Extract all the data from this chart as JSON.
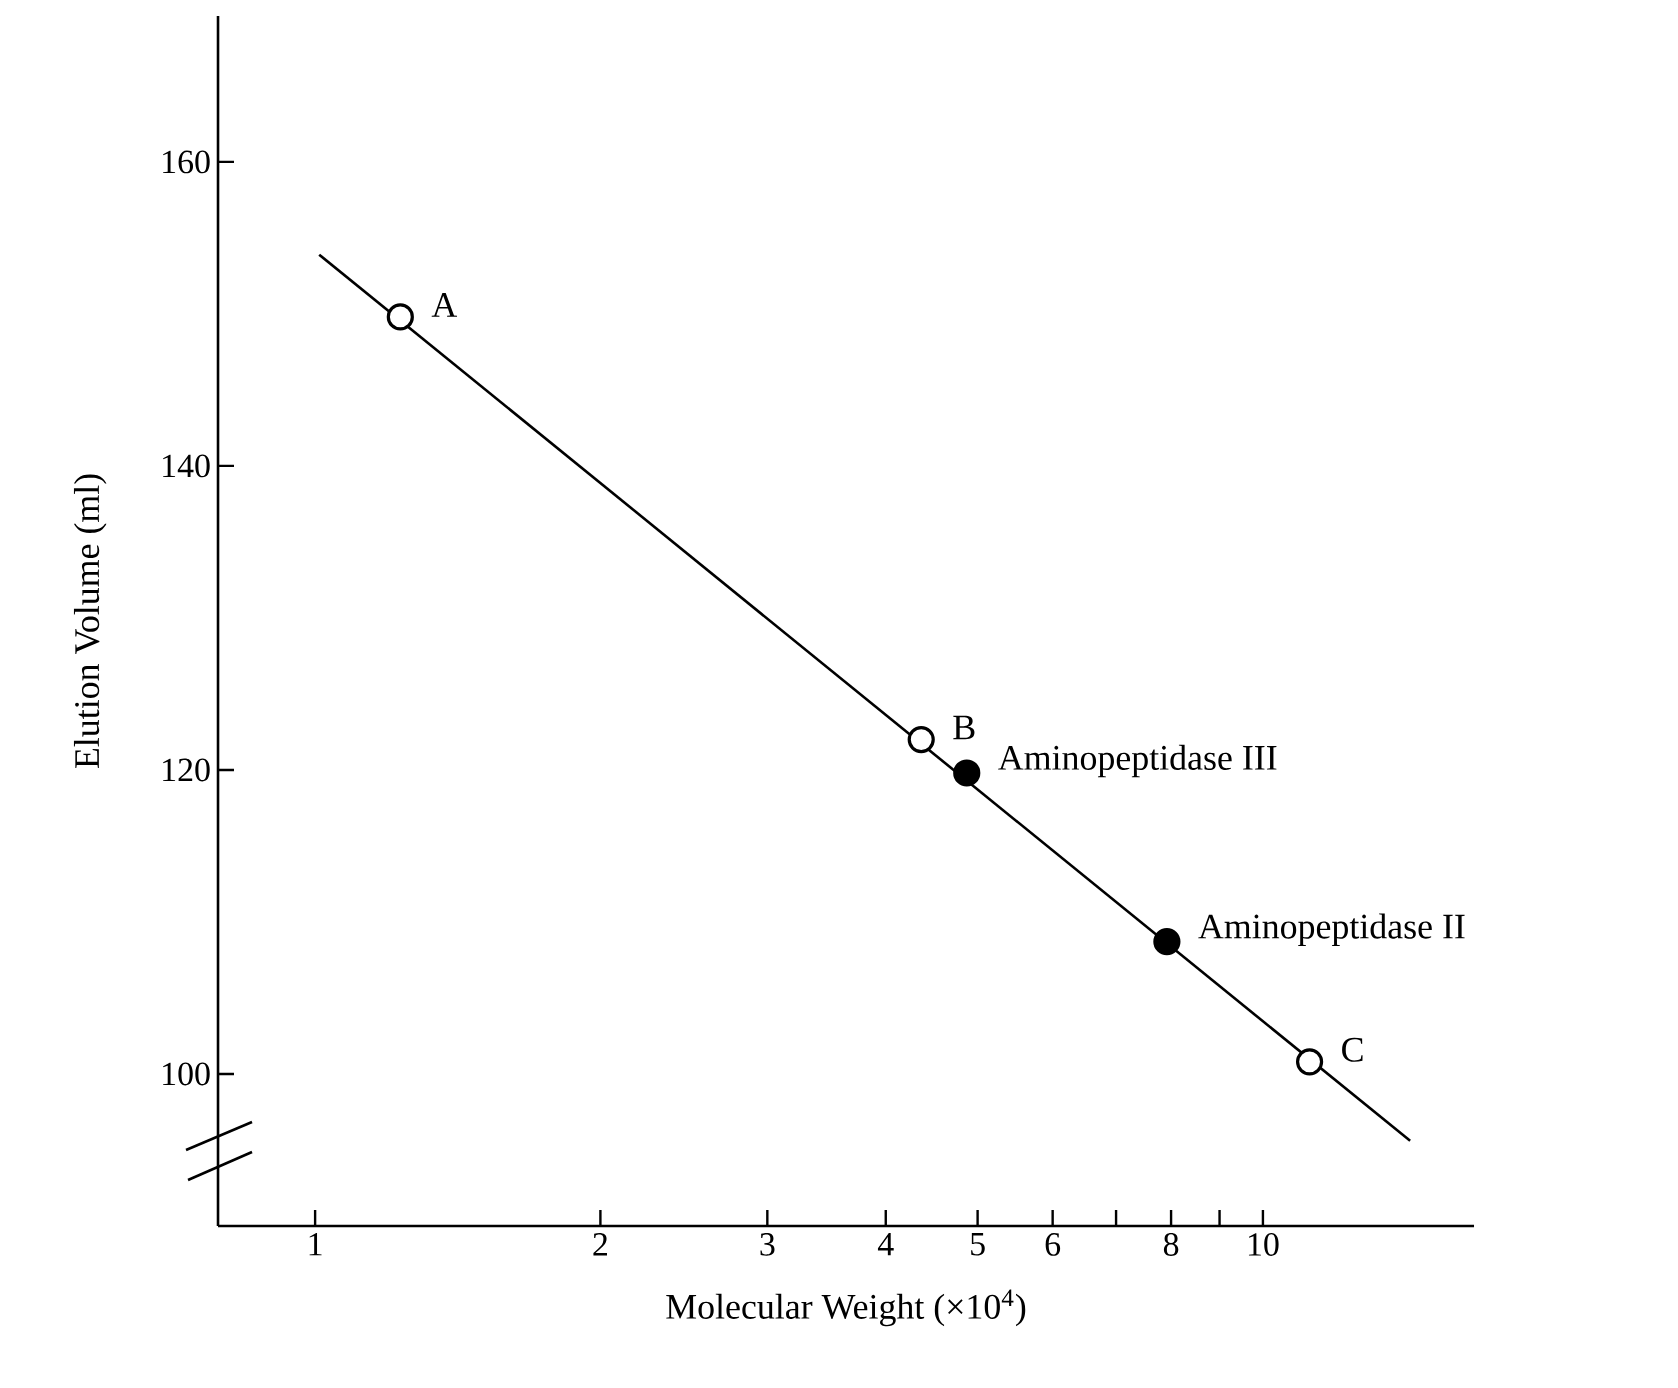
{
  "chart_data": {
    "type": "scatter",
    "xlabel": "Molecular Weight (×10$^{4}$)",
    "ylabel": "Elution Volume (ml)",
    "log": "x",
    "xlim": [
      0.79,
      16.7
    ],
    "ylim": [
      90,
      169.6
    ],
    "xticks": [
      1,
      2,
      3,
      4,
      5,
      6,
      {
        "value": 7,
        "label": null
      },
      8,
      {
        "value": 9,
        "label": null
      },
      10
    ],
    "yticks": [
      100,
      120,
      140,
      160
    ],
    "grid": false,
    "series": [
      {
        "type": "line",
        "marker": "none",
        "color": "#000000",
        "x": [
          1.01,
          14.3
        ],
        "values": [
          153.9,
          95.6
        ]
      },
      {
        "marker": "circle",
        "color": "#ffffff",
        "x": [
          1.23,
          4.36,
          11.2
        ],
        "values": [
          149.8,
          122.0,
          100.8
        ]
      },
      {
        "marker": "circle",
        "color": "#000000",
        "x": [
          4.87,
          7.92
        ],
        "values": [
          119.8,
          108.7
        ]
      }
    ],
    "annotations": [
      {
        "text": "A",
        "x": 1.23,
        "y": 149.8
      },
      {
        "text": "B",
        "x": 4.36,
        "y": 122.0
      },
      {
        "text": "C",
        "x": 11.2,
        "y": 100.8
      },
      {
        "text": "Aminopeptidase III",
        "x": 4.87,
        "y": 119.8
      },
      {
        "text": "Aminopeptidase II",
        "x": 7.92,
        "y": 108.7
      }
    ]
  }
}
